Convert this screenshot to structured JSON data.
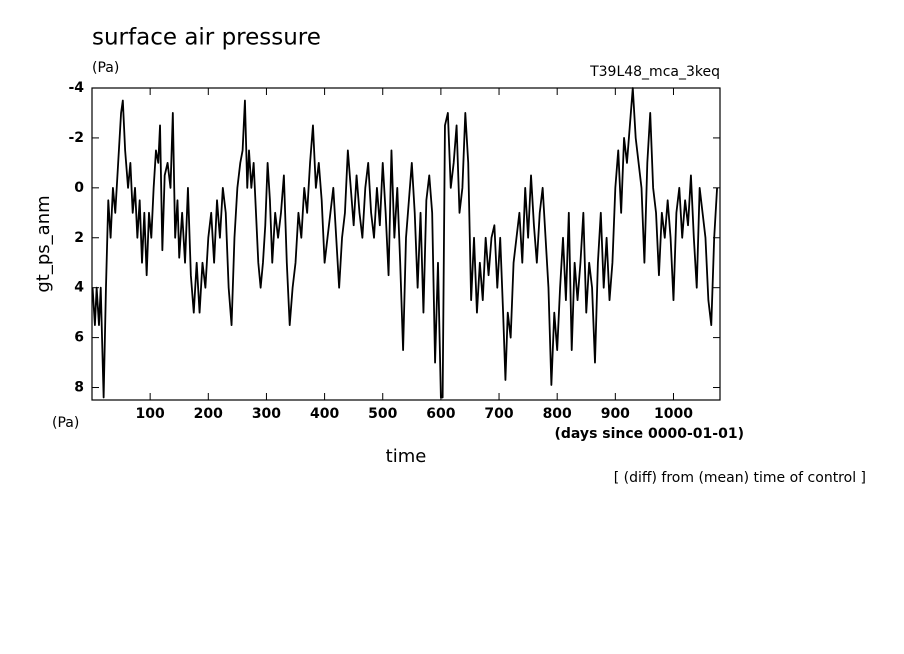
{
  "chart_data": {
    "type": "line",
    "title": "surface air pressure",
    "y_unit": "(Pa)",
    "subtitle": "T39L48_mca_3keq",
    "y_label": "gt_ps_anm",
    "y_unit_bottom": "(Pa)",
    "x_label": "time",
    "x_unit": "(days since 0000-01-01)",
    "annotation": "[ (diff) from (mean) time of control ]",
    "xlim": [
      0,
      1080
    ],
    "ylim": [
      8.5,
      -4
    ],
    "xticks": [
      100,
      200,
      300,
      400,
      500,
      600,
      700,
      800,
      900,
      1000
    ],
    "yticks": [
      8,
      6,
      4,
      2,
      0,
      -2,
      -4
    ],
    "series": [
      {
        "color": "#000000",
        "x": [
          1,
          5,
          8,
          12,
          15,
          20,
          24,
          28,
          32,
          36,
          40,
          45,
          50,
          53,
          57,
          62,
          66,
          70,
          74,
          78,
          82,
          86,
          90,
          94,
          98,
          102,
          106,
          110,
          114,
          117,
          121,
          125,
          130,
          135,
          139,
          143,
          147,
          150,
          155,
          160,
          165,
          170,
          175,
          180,
          185,
          190,
          195,
          200,
          205,
          210,
          215,
          220,
          225,
          230,
          235,
          240,
          245,
          250,
          255,
          259,
          263,
          267,
          270,
          274,
          278,
          282,
          286,
          290,
          294,
          298,
          302,
          306,
          310,
          315,
          320,
          325,
          330,
          335,
          340,
          345,
          350,
          355,
          360,
          365,
          370,
          375,
          380,
          385,
          390,
          395,
          400,
          405,
          410,
          415,
          420,
          425,
          430,
          435,
          440,
          445,
          450,
          455,
          460,
          465,
          470,
          475,
          480,
          485,
          490,
          495,
          500,
          505,
          510,
          515,
          520,
          525,
          530,
          535,
          540,
          545,
          550,
          555,
          560,
          565,
          570,
          575,
          580,
          585,
          590,
          595,
          600,
          603,
          607,
          612,
          617,
          622,
          627,
          632,
          637,
          642,
          647,
          652,
          657,
          662,
          667,
          672,
          677,
          682,
          687,
          692,
          697,
          702,
          707,
          711,
          715,
          720,
          725,
          730,
          735,
          740,
          745,
          750,
          755,
          760,
          765,
          770,
          775,
          780,
          785,
          790,
          795,
          800,
          805,
          810,
          815,
          820,
          825,
          830,
          835,
          840,
          845,
          850,
          855,
          860,
          865,
          870,
          875,
          880,
          885,
          890,
          895,
          900,
          905,
          910,
          915,
          920,
          925,
          930,
          935,
          940,
          945,
          950,
          955,
          960,
          965,
          970,
          975,
          980,
          985,
          990,
          995,
          1000,
          1005,
          1010,
          1015,
          1020,
          1025,
          1030,
          1035,
          1040,
          1045,
          1050,
          1055,
          1060,
          1065,
          1070,
          1075
        ],
        "values": [
          4,
          5.5,
          4,
          5.5,
          4,
          8.4,
          4,
          0.5,
          2,
          0,
          1,
          -1,
          -3,
          -3.5,
          -1.5,
          0,
          -1,
          1,
          0,
          2,
          0.5,
          3,
          1,
          3.5,
          1,
          2,
          0,
          -1.5,
          -1,
          -2.5,
          2.5,
          -0.5,
          -1,
          0,
          -3,
          2,
          0.5,
          2.8,
          1,
          3,
          0,
          3.5,
          5,
          3,
          5,
          3,
          4,
          2,
          1,
          3,
          0.5,
          2,
          0,
          1,
          4,
          5.5,
          2,
          0,
          -1,
          -1.5,
          -3.5,
          0,
          -1.5,
          0,
          -1,
          1,
          3,
          4,
          3,
          1.5,
          -1,
          0.5,
          3,
          1,
          2,
          1,
          -0.5,
          3,
          5.5,
          4,
          3,
          1,
          2,
          0,
          1,
          -1,
          -2.5,
          0,
          -1,
          0.5,
          3,
          2,
          1,
          0,
          2,
          4,
          2,
          1,
          -1.5,
          0,
          1.5,
          -0.5,
          1,
          2,
          0,
          -1,
          1,
          2,
          0,
          1.5,
          -1,
          1,
          3.5,
          -1.5,
          2,
          0,
          3,
          6.5,
          2,
          0.5,
          -1,
          1,
          4,
          1,
          5,
          0.5,
          -0.5,
          1,
          7,
          3,
          8.4,
          8.4,
          -2.5,
          -3,
          0,
          -1,
          -2.5,
          1,
          0,
          -3,
          -1,
          4.5,
          2,
          5,
          3,
          4.5,
          2,
          3.5,
          2,
          1.5,
          4,
          2,
          5,
          7.7,
          5,
          6,
          3,
          2,
          1,
          3,
          0,
          2,
          -0.5,
          1.5,
          3,
          1,
          0,
          2,
          4,
          7.9,
          5,
          6.5,
          4,
          2,
          4.5,
          1,
          6.5,
          3,
          4.5,
          3,
          1,
          5,
          3,
          4,
          7,
          3,
          1,
          4,
          2,
          4.5,
          3,
          0,
          -1.5,
          1,
          -2,
          -1,
          -2.5,
          -4,
          -2,
          -1,
          0,
          3,
          -1,
          -3,
          0,
          1,
          3.5,
          1,
          2,
          0.5,
          2,
          4.5,
          1,
          0,
          2,
          0.5,
          1.5,
          -0.5,
          2,
          4,
          0,
          1,
          2,
          4.5,
          5.5,
          2,
          0
        ]
      }
    ]
  }
}
